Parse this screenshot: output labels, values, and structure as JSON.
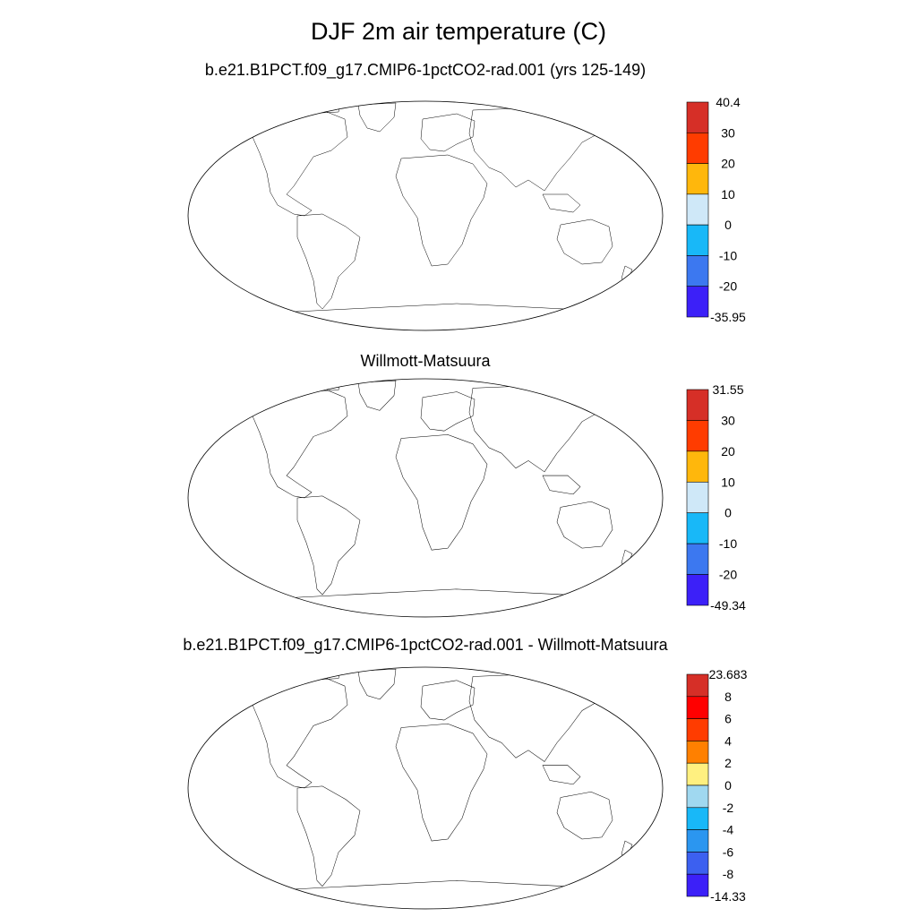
{
  "figure": {
    "title": "DJF 2m air temperature (C)"
  },
  "panels": [
    {
      "id": "model",
      "title": "b.e21.B1PCT.f09_g17.CMIP6-1pctCO2-rad.001 (yrs 125-149)",
      "colorbar": {
        "max_label": "40.4",
        "min_label": "-35.95",
        "levels": [
          "30",
          "20",
          "10",
          "0",
          "-10",
          "-20"
        ],
        "colors": [
          "#d62f27",
          "#ff3c00",
          "#ffb70c",
          "#cfe8f8",
          "#18b8f8",
          "#3c78f0",
          "#3c20f8"
        ]
      }
    },
    {
      "id": "obs",
      "title": "Willmott-Matsuura",
      "colorbar": {
        "max_label": "31.55",
        "min_label": "-49.34",
        "levels": [
          "30",
          "20",
          "10",
          "0",
          "-10",
          "-20"
        ],
        "colors": [
          "#d62f27",
          "#ff3c00",
          "#ffb70c",
          "#cfe8f8",
          "#18b8f8",
          "#3c78f0",
          "#3c20f8"
        ]
      }
    },
    {
      "id": "diff",
      "title": "b.e21.B1PCT.f09_g17.CMIP6-1pctCO2-rad.001 - Willmott-Matsuura",
      "colorbar": {
        "max_label": "23.683",
        "min_label": "-14.33",
        "levels": [
          "8",
          "6",
          "4",
          "2",
          "0",
          "-2",
          "-4",
          "-6",
          "-8"
        ],
        "colors": [
          "#d62f27",
          "#ff0000",
          "#ff3c00",
          "#ff8000",
          "#fff080",
          "#a0d8f0",
          "#18b8f8",
          "#2b96f0",
          "#3c60f0",
          "#3c20f8"
        ]
      }
    }
  ]
}
